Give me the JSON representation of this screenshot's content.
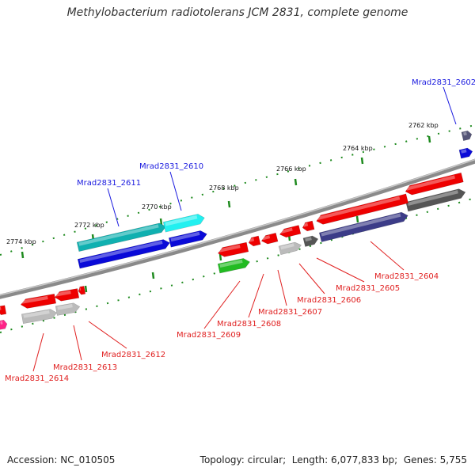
{
  "title": "Methylobacterium radiotolerans JCM 2831, complete genome",
  "scale_labels": [
    "2762 kbp",
    "2764 kbp",
    "2766 kbp",
    "2768 kbp",
    "2770 kbp",
    "2772 kbp",
    "2774 kbp"
  ],
  "genes": [
    {
      "locus": "Mrad2831_2602",
      "strand": "+",
      "color": "#1a1adf"
    },
    {
      "locus": "Mrad2831_2604",
      "strand": "-",
      "color": "#e02020"
    },
    {
      "locus": "Mrad2831_2605",
      "strand": "-",
      "color": "#e02020"
    },
    {
      "locus": "Mrad2831_2606",
      "strand": "-",
      "color": "#e02020"
    },
    {
      "locus": "Mrad2831_2607",
      "strand": "-",
      "color": "#e02020"
    },
    {
      "locus": "Mrad2831_2608",
      "strand": "-",
      "color": "#e02020"
    },
    {
      "locus": "Mrad2831_2609",
      "strand": "-",
      "color": "#e02020"
    },
    {
      "locus": "Mrad2831_2610",
      "strand": "+",
      "color": "#1a1adf"
    },
    {
      "locus": "Mrad2831_2611",
      "strand": "+",
      "color": "#1a1adf"
    },
    {
      "locus": "Mrad2831_2612",
      "strand": "-",
      "color": "#e02020"
    },
    {
      "locus": "Mrad2831_2613",
      "strand": "-",
      "color": "#e02020"
    },
    {
      "locus": "Mrad2831_2614",
      "strand": "-",
      "color": "#e02020"
    }
  ],
  "legend_colors": {
    "forward_label": "#1a1adf",
    "reverse_label": "#e02020",
    "tick": "#1e8a1e",
    "backbone": "#888888"
  },
  "footer": {
    "accession_label": "Accession:",
    "accession": "NC_010505",
    "topology_label": "Topology:",
    "topology": "circular",
    "length_label": "Length:",
    "length": "6,077,833 bp",
    "genes_label": "Genes:",
    "genes_count": "5,755"
  }
}
